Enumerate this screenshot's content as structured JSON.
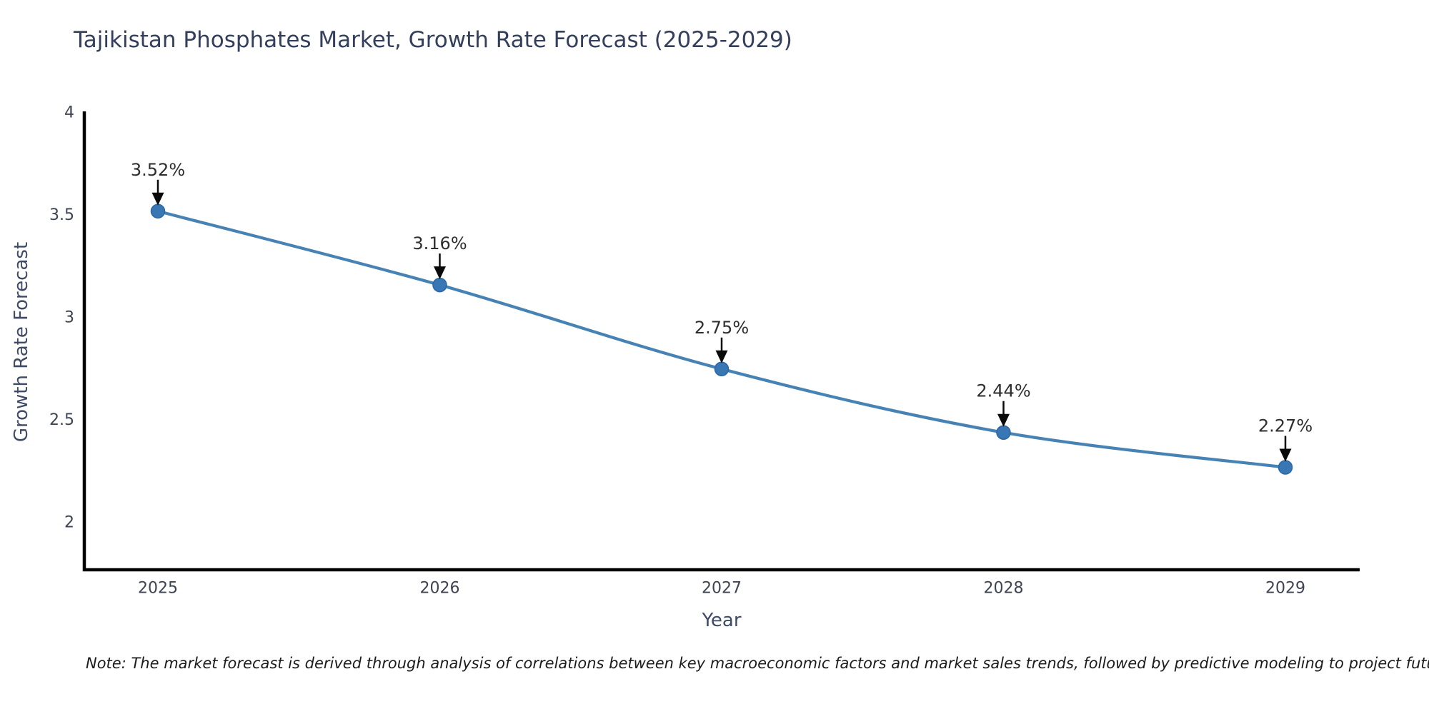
{
  "chart_data": {
    "type": "line",
    "title": "Tajikistan Phosphates Market, Growth Rate Forecast (2025-2029)",
    "xlabel": "Year",
    "ylabel": "Growth Rate Forecast",
    "x": [
      "2025",
      "2026",
      "2027",
      "2028",
      "2029"
    ],
    "values": [
      3.52,
      3.16,
      2.75,
      2.44,
      2.27
    ],
    "point_labels": [
      "3.52%",
      "3.16%",
      "2.75%",
      "2.44%",
      "2.27%"
    ],
    "y_ticks": [
      4,
      3.5,
      3,
      2.5,
      2
    ],
    "y_tick_labels": [
      "4",
      "3.5",
      "3",
      "2.5",
      "2"
    ],
    "ylim": [
      1.76,
      4
    ],
    "grid": false,
    "legend_position": "none",
    "smooth": true,
    "line_color": "#4682b4",
    "marker_color": "#3876b4",
    "marker_edge_color": "#2c67a5",
    "axis_color": "#000000",
    "arrow_color": "#0a0a0a",
    "annotation_color": "#2e2e2e",
    "tick_color": "#3d4452",
    "axis_label_color": "#3e4a66",
    "title_color": "#333f5b"
  },
  "note": {
    "text": "Note: The market forecast is derived through analysis of correlations between key macroeconomic factors and market sales trends, followed by predictive modeling to project future sales"
  }
}
